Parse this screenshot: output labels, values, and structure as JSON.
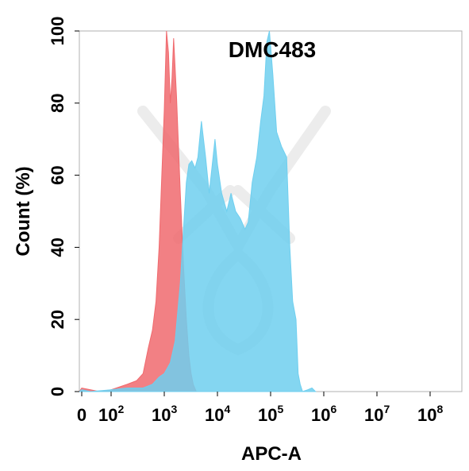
{
  "chart_data": {
    "type": "area",
    "title": "DMC483",
    "xlabel": "APC-A",
    "ylabel": "Count  (%)",
    "x_scale": "biexponential",
    "xlim": [
      0,
      100000000
    ],
    "ylim": [
      0,
      100
    ],
    "grid": false,
    "legend": "none",
    "x_ticks": [
      {
        "base": "0",
        "exp": ""
      },
      {
        "base": "10",
        "exp": "2"
      },
      {
        "base": "10",
        "exp": "3"
      },
      {
        "base": "10",
        "exp": "4"
      },
      {
        "base": "10",
        "exp": "5"
      },
      {
        "base": "10",
        "exp": "6"
      },
      {
        "base": "10",
        "exp": "7"
      },
      {
        "base": "10",
        "exp": "8"
      }
    ],
    "y_ticks": [
      "0",
      "20",
      "40",
      "60",
      "80",
      "100"
    ],
    "series": [
      {
        "color": "#f06a6e",
        "points": [
          [
            -30,
            0
          ],
          [
            0,
            1
          ],
          [
            30,
            0.5
          ],
          [
            60,
            0
          ],
          [
            100,
            0.5
          ],
          [
            200,
            2
          ],
          [
            300,
            3
          ],
          [
            400,
            5
          ],
          [
            500,
            12
          ],
          [
            600,
            17
          ],
          [
            700,
            25
          ],
          [
            800,
            40
          ],
          [
            900,
            60
          ],
          [
            1000,
            78
          ],
          [
            1100,
            100
          ],
          [
            1200,
            94
          ],
          [
            1300,
            80
          ],
          [
            1400,
            87
          ],
          [
            1500,
            98
          ],
          [
            1700,
            82
          ],
          [
            2000,
            55
          ],
          [
            2300,
            35
          ],
          [
            2600,
            20
          ],
          [
            2900,
            10
          ],
          [
            3200,
            5
          ],
          [
            3500,
            2
          ],
          [
            4000,
            0
          ]
        ]
      },
      {
        "color": "#6fcfef",
        "points": [
          [
            -30,
            0
          ],
          [
            0,
            0.5
          ],
          [
            30,
            0
          ],
          [
            100,
            0.5
          ],
          [
            200,
            1
          ],
          [
            400,
            1
          ],
          [
            600,
            2
          ],
          [
            800,
            4
          ],
          [
            1000,
            5
          ],
          [
            1300,
            8
          ],
          [
            1600,
            14
          ],
          [
            2000,
            30
          ],
          [
            2300,
            45
          ],
          [
            2600,
            58
          ],
          [
            2900,
            63
          ],
          [
            3300,
            64
          ],
          [
            3800,
            62
          ],
          [
            4300,
            65
          ],
          [
            5000,
            75
          ],
          [
            6000,
            65
          ],
          [
            7000,
            55
          ],
          [
            8000,
            63
          ],
          [
            9000,
            70
          ],
          [
            10000,
            63
          ],
          [
            12000,
            55
          ],
          [
            15000,
            50
          ],
          [
            18000,
            55
          ],
          [
            22000,
            50
          ],
          [
            27000,
            48
          ],
          [
            33000,
            45
          ],
          [
            38000,
            47
          ],
          [
            45000,
            58
          ],
          [
            55000,
            65
          ],
          [
            65000,
            75
          ],
          [
            75000,
            82
          ],
          [
            85000,
            97
          ],
          [
            95000,
            100
          ],
          [
            110000,
            88
          ],
          [
            130000,
            72
          ],
          [
            160000,
            68
          ],
          [
            200000,
            65
          ],
          [
            230000,
            40
          ],
          [
            260000,
            25
          ],
          [
            300000,
            20
          ],
          [
            330000,
            5
          ],
          [
            360000,
            2
          ],
          [
            400000,
            0
          ],
          [
            500000,
            0.5
          ],
          [
            600000,
            1
          ],
          [
            700000,
            0
          ]
        ]
      }
    ]
  }
}
